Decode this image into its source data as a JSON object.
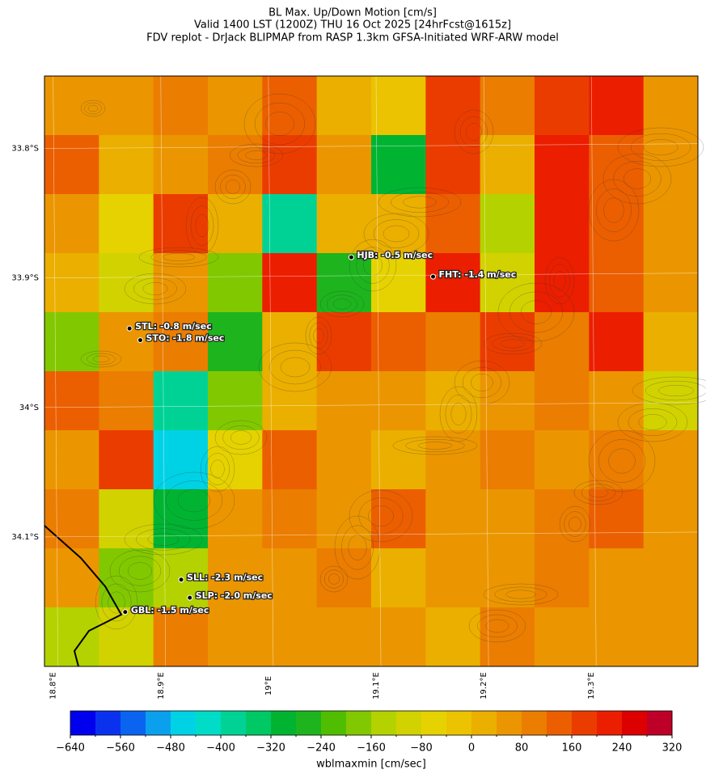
{
  "title": [
    "BL Max. Up/Down Motion [cm/s]",
    "Valid 1400 LST (1200Z) THU 16 Oct 2025 [24hrFcst@1615z]",
    "FDV replot - DrJack BLIPMAP from RASP 1.3km GFSA-Initiated WRF-ARW model"
  ],
  "map": {
    "xlim": [
      18.792,
      19.399
    ],
    "ylim": [
      -34.2,
      -33.744
    ],
    "xticks": [
      {
        "value": 18.8,
        "label": "18.8°E"
      },
      {
        "value": 18.9,
        "label": "18.9°E"
      },
      {
        "value": 19.0,
        "label": "19°E"
      },
      {
        "value": 19.1,
        "label": "19.1°E"
      },
      {
        "value": 19.2,
        "label": "19.2°E"
      },
      {
        "value": 19.3,
        "label": "19.3°E"
      }
    ],
    "yticks": [
      {
        "value": -33.8,
        "label": "33.8°S"
      },
      {
        "value": -33.9,
        "label": "33.9°S"
      },
      {
        "value": -34.0,
        "label": "34°S"
      },
      {
        "value": -34.1,
        "label": "34.1°S"
      }
    ],
    "field": [
      [
        40,
        40,
        80,
        40,
        120,
        0,
        -40,
        160,
        80,
        160,
        200,
        40
      ],
      [
        120,
        0,
        40,
        80,
        160,
        40,
        -300,
        160,
        0,
        200,
        120,
        40
      ],
      [
        40,
        -80,
        160,
        0,
        -400,
        0,
        0,
        120,
        -160,
        200,
        120,
        40
      ],
      [
        0,
        -120,
        40,
        -200,
        200,
        -280,
        -80,
        200,
        -120,
        200,
        120,
        40
      ],
      [
        -200,
        40,
        80,
        -280,
        0,
        160,
        120,
        80,
        160,
        80,
        200,
        0
      ],
      [
        120,
        80,
        -400,
        -200,
        0,
        40,
        40,
        0,
        40,
        80,
        40,
        -120
      ],
      [
        40,
        160,
        -450,
        -80,
        120,
        40,
        0,
        40,
        80,
        40,
        80,
        40
      ],
      [
        80,
        -120,
        -300,
        40,
        80,
        40,
        120,
        40,
        40,
        80,
        120,
        40
      ],
      [
        40,
        -200,
        -160,
        40,
        40,
        80,
        0,
        40,
        40,
        80,
        40,
        40
      ],
      [
        -160,
        -120,
        80,
        40,
        40,
        40,
        40,
        0,
        80,
        40,
        40,
        40
      ]
    ]
  },
  "stations": [
    {
      "label": "HJB: -0.5 m/sec",
      "lon": 19.077,
      "lat": -33.884
    },
    {
      "label": "FHT: -1.4 m/sec",
      "lon": 19.153,
      "lat": -33.899
    },
    {
      "label": "STL: -0.8 m/sec",
      "lon": 18.871,
      "lat": -33.939
    },
    {
      "label": "STO: -1.8 m/sec",
      "lon": 18.881,
      "lat": -33.948
    },
    {
      "label": "SLL: -2.3 m/sec",
      "lon": 18.919,
      "lat": -34.133
    },
    {
      "label": "SLP: -2.0 m/sec",
      "lon": 18.927,
      "lat": -34.147
    },
    {
      "label": "GBL: -1.5 m/sec",
      "lon": 18.867,
      "lat": -34.158
    }
  ],
  "colorbar": {
    "label": "wblmaxmin [cm/sec]",
    "bounds": [
      -640,
      -600,
      -560,
      -520,
      -480,
      -440,
      -400,
      -360,
      -320,
      -280,
      -240,
      -200,
      -160,
      -120,
      -80,
      -40,
      0,
      40,
      80,
      120,
      160,
      200,
      240,
      280,
      320
    ],
    "colors": [
      "#0000ee",
      "#0a32ee",
      "#0a64f0",
      "#0aa0ee",
      "#00d2e6",
      "#00dcc8",
      "#00d296",
      "#00c864",
      "#00b432",
      "#1eb41e",
      "#50be00",
      "#82c800",
      "#b4d200",
      "#d2d200",
      "#e6d200",
      "#ebc300",
      "#ebaf00",
      "#eb9600",
      "#eb7d00",
      "#eb5f00",
      "#eb3c00",
      "#eb1e00",
      "#dc0000",
      "#be0028"
    ],
    "ticks": [
      {
        "value": -640,
        "label": "−640"
      },
      {
        "value": -560,
        "label": "−560"
      },
      {
        "value": -480,
        "label": "−480"
      },
      {
        "value": -400,
        "label": "−400"
      },
      {
        "value": -320,
        "label": "−320"
      },
      {
        "value": -240,
        "label": "−240"
      },
      {
        "value": -160,
        "label": "−160"
      },
      {
        "value": -80,
        "label": "−80"
      },
      0,
      80,
      160,
      240,
      320
    ]
  }
}
